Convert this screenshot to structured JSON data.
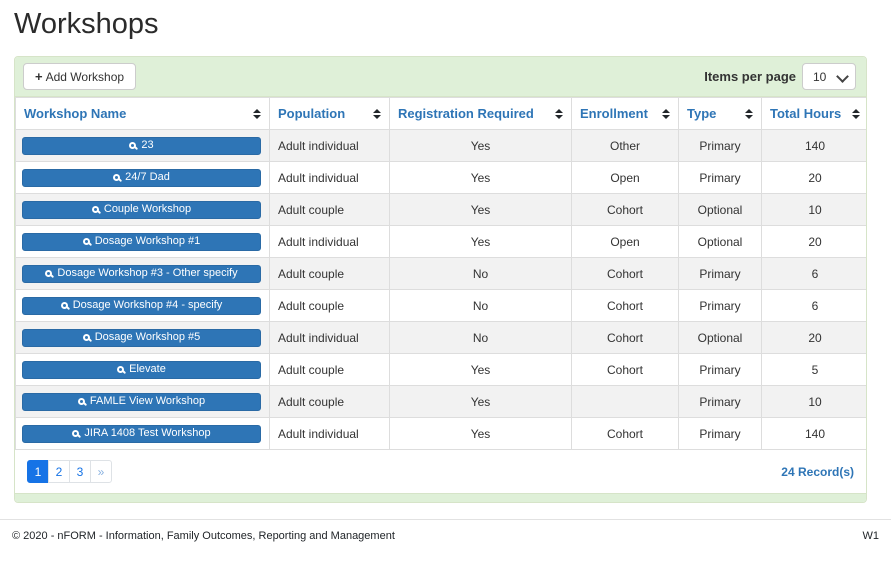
{
  "page": {
    "title": "Workshops"
  },
  "toolbar": {
    "add_button": {
      "icon": "+",
      "label": "Add Workshop"
    },
    "items_per_page_label": "Items per page",
    "items_per_page_value": "10"
  },
  "table": {
    "columns": [
      {
        "label": "Workshop Name"
      },
      {
        "label": "Population"
      },
      {
        "label": "Registration Required"
      },
      {
        "label": "Enrollment"
      },
      {
        "label": "Type"
      },
      {
        "label": "Total Hours"
      }
    ],
    "rows": [
      {
        "name": "23",
        "population": "Adult individual",
        "registration_required": "Yes",
        "enrollment": "Other",
        "type": "Primary",
        "total_hours": "140"
      },
      {
        "name": "24/7 Dad",
        "population": "Adult individual",
        "registration_required": "Yes",
        "enrollment": "Open",
        "type": "Primary",
        "total_hours": "20"
      },
      {
        "name": "Couple Workshop",
        "population": "Adult couple",
        "registration_required": "Yes",
        "enrollment": "Cohort",
        "type": "Optional",
        "total_hours": "10"
      },
      {
        "name": "Dosage Workshop #1",
        "population": "Adult individual",
        "registration_required": "Yes",
        "enrollment": "Open",
        "type": "Optional",
        "total_hours": "20"
      },
      {
        "name": "Dosage Workshop #3 - Other specify",
        "population": "Adult couple",
        "registration_required": "No",
        "enrollment": "Cohort",
        "type": "Primary",
        "total_hours": "6"
      },
      {
        "name": "Dosage Workshop #4 - specify",
        "population": "Adult couple",
        "registration_required": "No",
        "enrollment": "Cohort",
        "type": "Primary",
        "total_hours": "6"
      },
      {
        "name": "Dosage Workshop #5",
        "population": "Adult individual",
        "registration_required": "No",
        "enrollment": "Cohort",
        "type": "Optional",
        "total_hours": "20"
      },
      {
        "name": "Elevate",
        "population": "Adult couple",
        "registration_required": "Yes",
        "enrollment": "Cohort",
        "type": "Primary",
        "total_hours": "5"
      },
      {
        "name": "FAMLE View Workshop",
        "population": "Adult couple",
        "registration_required": "Yes",
        "enrollment": "",
        "type": "Primary",
        "total_hours": "10"
      },
      {
        "name": "JIRA 1408 Test Workshop",
        "population": "Adult individual",
        "registration_required": "Yes",
        "enrollment": "Cohort",
        "type": "Primary",
        "total_hours": "140"
      }
    ]
  },
  "pagination": {
    "pages": [
      "1",
      "2",
      "3"
    ],
    "active_page": "1",
    "next_label": "»",
    "record_count": "24 Record(s)"
  },
  "footer": {
    "copyright": "© 2020 - nFORM - Information, Family Outcomes, Reporting and Management",
    "version": "W1"
  },
  "colors": {
    "accent_blue": "#2e75b6",
    "pagination_blue": "#1673e6",
    "panel_green": "#dff0d8",
    "stripe_gray": "#f2f2f2"
  }
}
